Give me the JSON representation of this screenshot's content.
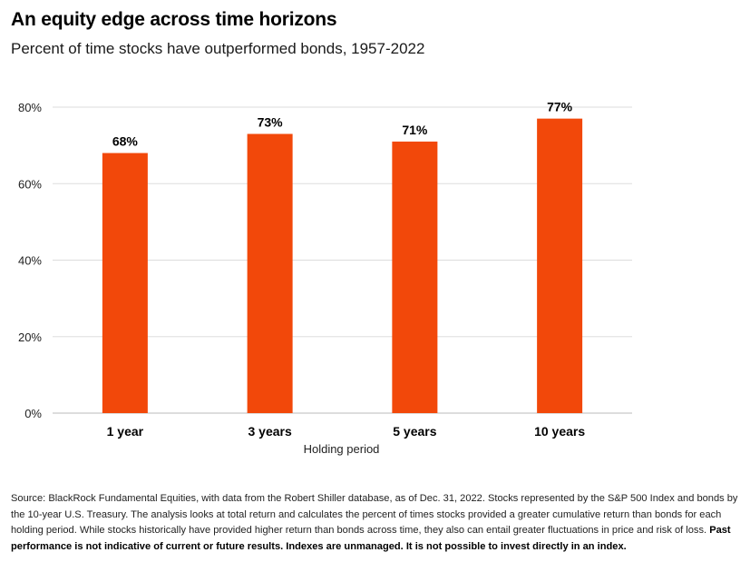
{
  "header": {
    "title": "An equity edge across time horizons",
    "subtitle": "Percent of time stocks have outperformed bonds, 1957-2022"
  },
  "colors": {
    "bar": "#f2480a",
    "grid": "#dddddd",
    "baseline": "#bbbbbb",
    "text": "#000000"
  },
  "chart_data": {
    "type": "bar",
    "categories": [
      "1 year",
      "3 years",
      "5 years",
      "10 years"
    ],
    "values": [
      68,
      73,
      71,
      77
    ],
    "data_labels": [
      "68%",
      "73%",
      "71%",
      "77%"
    ],
    "xlabel": "Holding period",
    "ylabel": "",
    "ylim": [
      0,
      80
    ],
    "yticks": [
      0,
      20,
      40,
      60,
      80
    ],
    "ytick_labels": [
      "0%",
      "20%",
      "40%",
      "60%",
      "80%"
    ],
    "grid": true,
    "legend": "none"
  },
  "footnote": {
    "text": "Source: BlackRock Fundamental Equities, with data from the Robert Shiller database, as of Dec. 31, 2022. Stocks represented by the S&P 500 Index and bonds by the 10-year U.S. Treasury. The analysis looks at total return and calculates the percent of times stocks provided a greater cumulative return than bonds for each holding period. While stocks historically have provided higher return than bonds across time, they also can entail greater fluctuations in price and risk of loss. ",
    "bold": "Past performance is not indicative of current or future results. Indexes are unmanaged. It is not possible to invest directly in an index."
  }
}
